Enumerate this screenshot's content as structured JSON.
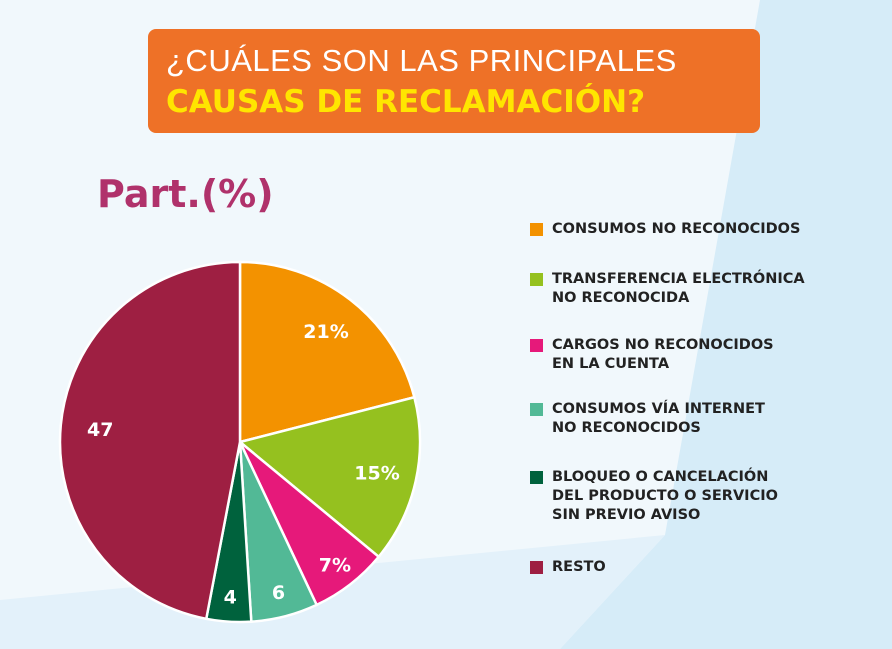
{
  "title": {
    "line1": "¿CUÁLES SON LAS PRINCIPALES",
    "line2": "CAUSAS DE RECLAMACIÓN?"
  },
  "chart_data": {
    "type": "pie",
    "title": "Part.(%)",
    "categories": [
      "CONSUMOS NO RECONOCIDOS",
      "TRANSFERENCIA ELECTRÓNICA NO RECONOCIDA",
      "CARGOS NO RECONOCIDOS EN LA CUENTA",
      "CONSUMOS VÍA INTERNET NO RECONOCIDOS",
      "BLOQUEO O CANCELACIÓN DEL PRODUCTO O SERVICIO SIN PREVIO AVISO",
      "RESTO"
    ],
    "legend_lines": [
      [
        "CONSUMOS NO RECONOCIDOS"
      ],
      [
        "TRANSFERENCIA ELECTRÓNICA",
        "NO RECONOCIDA"
      ],
      [
        "CARGOS NO RECONOCIDOS",
        "EN LA CUENTA"
      ],
      [
        "CONSUMOS VÍA INTERNET",
        "NO RECONOCIDOS"
      ],
      [
        "BLOQUEO O CANCELACIÓN",
        "DEL PRODUCTO O SERVICIO",
        "SIN PREVIO AVISO"
      ],
      [
        "RESTO"
      ]
    ],
    "values": [
      21,
      15,
      7,
      6,
      4,
      47
    ],
    "data_labels": [
      "21%",
      "15%",
      "7%",
      "6",
      "4",
      "47"
    ],
    "colors": [
      "#f39200",
      "#95c11f",
      "#e6197a",
      "#52b996",
      "#00623d",
      "#9e1f42"
    ],
    "legend_position": "right"
  }
}
